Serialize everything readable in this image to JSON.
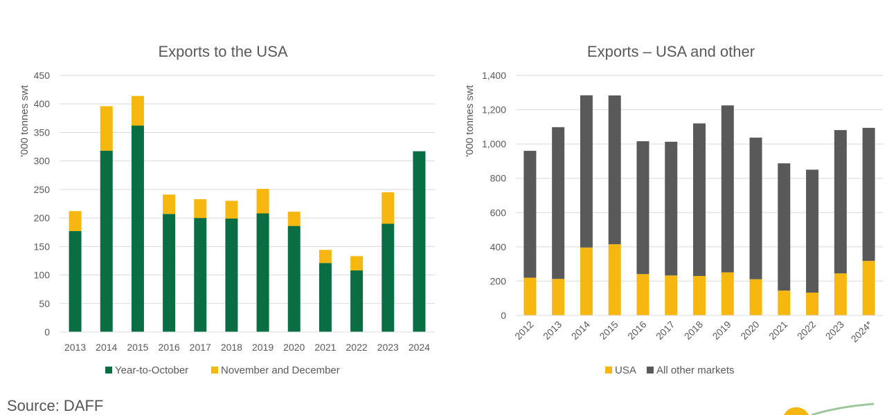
{
  "colors": {
    "ytd": "#0a6e43",
    "novdec": "#f6b80f",
    "usa": "#f6b80f",
    "other": "#595959",
    "grid": "#d9d9d9",
    "text": "#595959",
    "logo_green": "#9cc79a"
  },
  "source_text": "Source: DAFF",
  "chart_data": [
    {
      "type": "bar",
      "stacked": true,
      "title": "Exports to the USA",
      "ylabel": "'000 tonnes swt",
      "xlabel": "",
      "ylim": [
        0,
        450
      ],
      "yticks": [
        0,
        50,
        100,
        150,
        200,
        250,
        300,
        350,
        400,
        450
      ],
      "ytick_labels": [
        "0",
        "50",
        "100",
        "150",
        "200",
        "250",
        "300",
        "350",
        "400",
        "450"
      ],
      "grid": true,
      "legend_position": "bottom",
      "categories": [
        "2013",
        "2014",
        "2015",
        "2016",
        "2017",
        "2018",
        "2019",
        "2020",
        "2021",
        "2022",
        "2023",
        "2024"
      ],
      "series": [
        {
          "name": "Year-to-October",
          "color_key": "ytd",
          "values": [
            177,
            318,
            362,
            207,
            200,
            199,
            208,
            186,
            121,
            108,
            190,
            317
          ]
        },
        {
          "name": "November and December",
          "color_key": "novdec",
          "values": [
            35,
            78,
            52,
            34,
            33,
            31,
            43,
            25,
            23,
            25,
            55,
            0
          ]
        }
      ]
    },
    {
      "type": "bar",
      "stacked": true,
      "title": "Exports – USA and other",
      "ylabel": "'000 tonnes swt",
      "xlabel": "",
      "ylim": [
        0,
        1400
      ],
      "yticks": [
        0,
        200,
        400,
        600,
        800,
        1000,
        1200,
        1400
      ],
      "ytick_labels": [
        "0",
        "200",
        "400",
        "600",
        "800",
        "1,000",
        "1,200",
        "1,400"
      ],
      "grid": true,
      "legend_position": "bottom",
      "categories": [
        "2012",
        "2013",
        "2014",
        "2015",
        "2016",
        "2017",
        "2018",
        "2019",
        "2020",
        "2021",
        "2022",
        "2023",
        "2024*"
      ],
      "series": [
        {
          "name": "USA",
          "color_key": "usa",
          "values": [
            220,
            213,
            396,
            415,
            241,
            233,
            230,
            251,
            211,
            145,
            133,
            245,
            318
          ]
        },
        {
          "name": "All other markets",
          "color_key": "other",
          "values": [
            740,
            885,
            888,
            868,
            775,
            780,
            890,
            974,
            826,
            742,
            717,
            836,
            776
          ]
        }
      ]
    }
  ]
}
